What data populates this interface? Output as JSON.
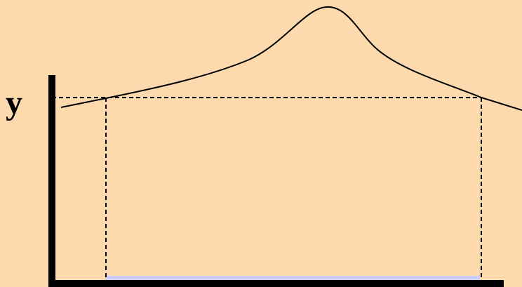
{
  "diagram": {
    "y_axis_label": "y"
  },
  "colors": {
    "background": "#FDD9AE",
    "axis": "#000000",
    "curve": "#000000",
    "guide_lines": "#000000",
    "interval_highlight": "#CCCCFF"
  }
}
